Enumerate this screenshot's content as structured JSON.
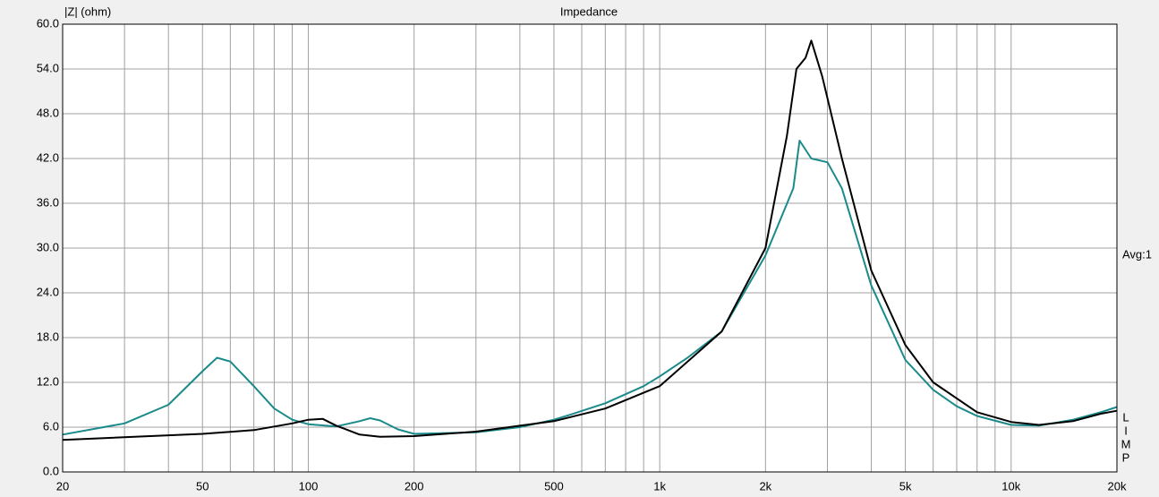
{
  "chart_data": {
    "type": "line",
    "title": "Impedance",
    "ylabel": "|Z| (ohm)",
    "annotation": "Avg:1",
    "side_letters": [
      "L",
      "I",
      "M",
      "P"
    ],
    "xscale": "log",
    "grid": true,
    "xlim": [
      20,
      20000
    ],
    "ylim": [
      0,
      60
    ],
    "xticks": [
      20,
      50,
      100,
      200,
      500,
      {
        "value": 1000,
        "label": "1k"
      },
      {
        "value": 2000,
        "label": "2k"
      },
      {
        "value": 5000,
        "label": "5k"
      },
      {
        "value": 10000,
        "label": "10k"
      },
      {
        "value": 20000,
        "label": "20k"
      }
    ],
    "xminorticks": [
      30,
      40,
      60,
      70,
      80,
      90,
      300,
      400,
      600,
      700,
      800,
      900,
      3000,
      4000,
      6000,
      7000,
      8000,
      9000
    ],
    "yticks": [
      {
        "value": 0,
        "label": "0.0"
      },
      {
        "value": 6,
        "label": "6.0"
      },
      {
        "value": 12,
        "label": "12.0"
      },
      {
        "value": 18,
        "label": "18.0"
      },
      {
        "value": 24,
        "label": "24.0"
      },
      {
        "value": 30,
        "label": "30.0"
      },
      {
        "value": 36,
        "label": "36.0"
      },
      {
        "value": 42,
        "label": "42.0"
      },
      {
        "value": 48,
        "label": "48.0"
      },
      {
        "value": 54,
        "label": "54.0"
      },
      {
        "value": 60,
        "label": "60.0"
      }
    ],
    "series": [
      {
        "color": "#1a8a8a",
        "x": [
          20,
          30,
          40,
          50,
          55,
          60,
          70,
          80,
          90,
          100,
          120,
          140,
          150,
          160,
          180,
          200,
          300,
          400,
          500,
          550,
          700,
          900,
          1000,
          1200,
          1500,
          2000,
          2400,
          2500,
          2700,
          3000,
          3300,
          4000,
          5000,
          6000,
          7000,
          8000,
          10000,
          12000,
          15000,
          18000,
          20000
        ],
        "values": [
          5.0,
          6.5,
          9.0,
          13.5,
          15.3,
          14.8,
          11.5,
          8.5,
          7.0,
          6.4,
          6.1,
          6.8,
          7.2,
          6.9,
          5.7,
          5.1,
          5.3,
          6.0,
          7.0,
          7.6,
          9.2,
          11.5,
          12.8,
          15.3,
          18.8,
          29.0,
          38.0,
          44.4,
          42.0,
          41.5,
          38.0,
          25.0,
          15.0,
          11.0,
          8.8,
          7.5,
          6.3,
          6.2,
          7.0,
          8.0,
          8.7
        ]
      },
      {
        "color": "#000000",
        "x": [
          20,
          50,
          70,
          90,
          100,
          110,
          120,
          140,
          160,
          200,
          300,
          500,
          700,
          1000,
          1500,
          2000,
          2300,
          2450,
          2600,
          2700,
          2900,
          3300,
          4000,
          5000,
          6000,
          8000,
          10000,
          12000,
          15000,
          18000,
          20000
        ],
        "values": [
          4.3,
          5.1,
          5.6,
          6.5,
          7.0,
          7.1,
          6.2,
          5.0,
          4.7,
          4.8,
          5.4,
          6.8,
          8.5,
          11.5,
          18.8,
          30.0,
          45.0,
          54.0,
          55.5,
          57.8,
          53.0,
          42.0,
          27.0,
          17.0,
          12.0,
          8.0,
          6.7,
          6.3,
          6.8,
          7.8,
          8.2
        ]
      }
    ]
  }
}
